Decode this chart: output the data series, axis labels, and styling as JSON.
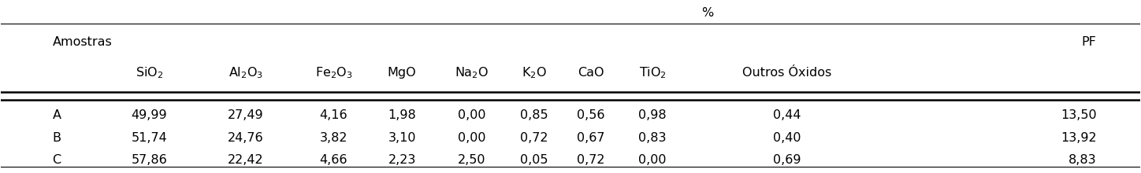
{
  "title_percent": "%",
  "col_headers": [
    "Amostras",
    "SiO$_2$",
    "Al$_2$O$_3$",
    "Fe$_2$O$_3$",
    "MgO",
    "Na$_2$O",
    "K$_2$O",
    "CaO",
    "TiO$_2$",
    "Outros Óxidos",
    "PF"
  ],
  "rows": [
    [
      "A",
      "49,99",
      "27,49",
      "4,16",
      "1,98",
      "0,00",
      "0,85",
      "0,56",
      "0,98",
      "0,44",
      "13,50"
    ],
    [
      "B",
      "51,74",
      "24,76",
      "3,82",
      "3,10",
      "0,00",
      "0,72",
      "0,67",
      "0,83",
      "0,40",
      "13,92"
    ],
    [
      "C",
      "57,86",
      "22,42",
      "4,66",
      "2,23",
      "2,50",
      "0,05",
      "0,72",
      "0,00",
      "0,69",
      "8,83"
    ]
  ],
  "bg_color": "#ffffff",
  "text_color": "#000000",
  "font_size": 11.5
}
